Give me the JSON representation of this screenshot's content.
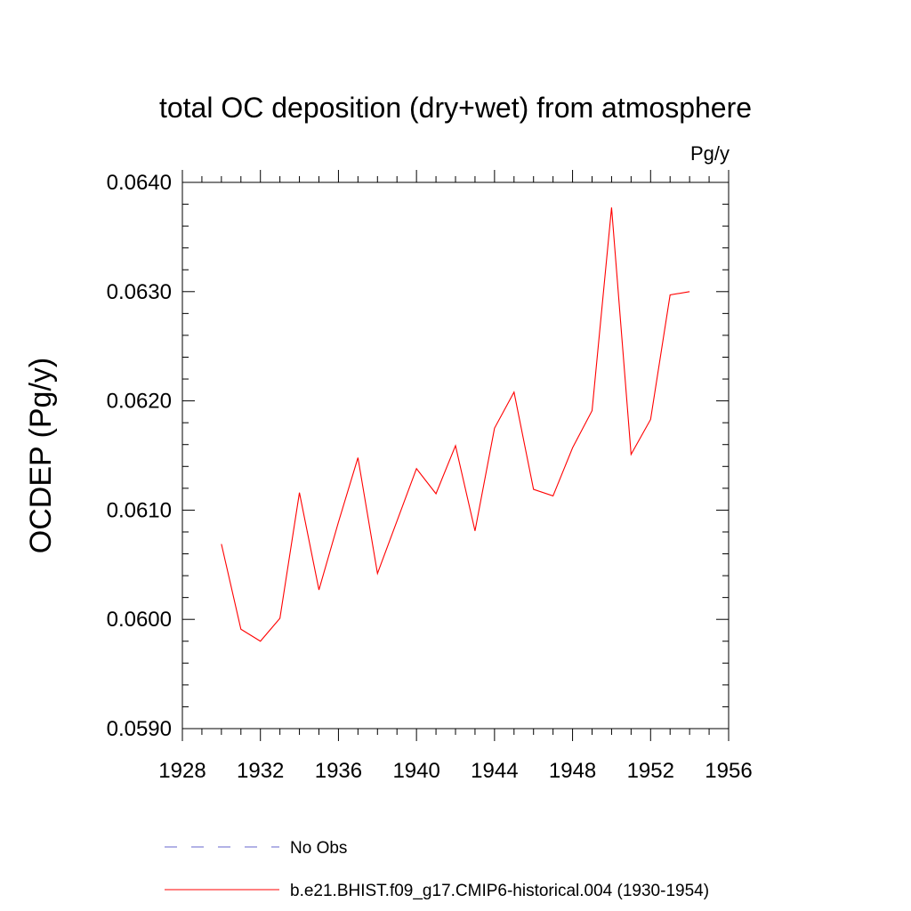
{
  "chart_data": {
    "type": "line",
    "title": "total OC deposition (dry+wet) from atmosphere",
    "units_label": "Pg/y",
    "ylabel": "OCDEP  (Pg/y)",
    "xlabel": "",
    "xlim": [
      1928,
      1956
    ],
    "ylim": [
      0.059,
      0.064
    ],
    "x_ticks": [
      "1928",
      "1932",
      "1936",
      "1940",
      "1944",
      "1948",
      "1952",
      "1956"
    ],
    "y_ticks": [
      "0.0590",
      "0.0600",
      "0.0610",
      "0.0620",
      "0.0630",
      "0.0640"
    ],
    "grid": false,
    "legend_position": "bottom",
    "series": [
      {
        "name": "No Obs",
        "color": "#6666cc",
        "line_style": "dashed",
        "x": [],
        "values": []
      },
      {
        "name": "b.e21.BHIST.f09_g17.CMIP6-historical.004 (1930-1954)",
        "color": "#ff0000",
        "line_style": "solid",
        "x": [
          1930,
          1931,
          1932,
          1933,
          1934,
          1935,
          1936,
          1937,
          1938,
          1939,
          1940,
          1941,
          1942,
          1943,
          1944,
          1945,
          1946,
          1947,
          1948,
          1949,
          1950,
          1951,
          1952,
          1953,
          1954
        ],
        "values": [
          0.06069,
          0.05991,
          0.0598,
          0.06001,
          0.06116,
          0.06027,
          0.06089,
          0.06148,
          0.06042,
          0.0609,
          0.06138,
          0.06115,
          0.06159,
          0.06081,
          0.06175,
          0.06208,
          0.06119,
          0.06113,
          0.06157,
          0.06191,
          0.06377,
          0.06151,
          0.06183,
          0.06297,
          0.063
        ]
      }
    ]
  }
}
